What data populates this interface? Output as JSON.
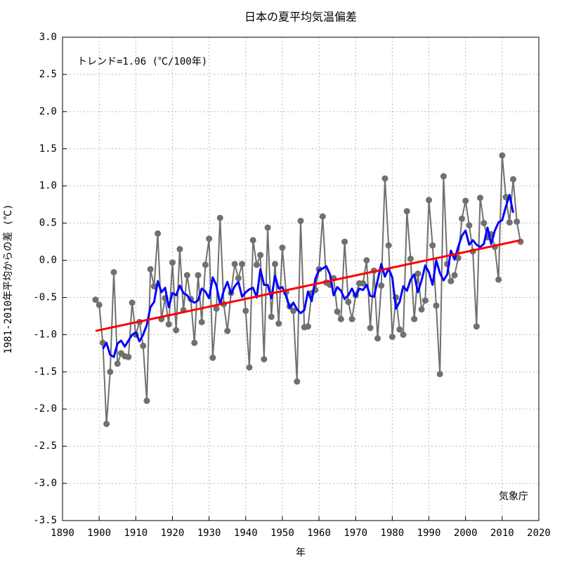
{
  "chart_data": {
    "type": "line",
    "title": "日本の夏平均気温偏差",
    "xlabel": "年",
    "ylabel": "1981-2010年平均からの差 (℃)",
    "annotations": [
      "トレンド=1.06 (℃/100年)",
      "気象庁"
    ],
    "xlim": [
      1890,
      2020
    ],
    "xticks": [
      1890,
      1900,
      1910,
      1920,
      1930,
      1940,
      1950,
      1960,
      1970,
      1980,
      1990,
      2000,
      2010,
      2020
    ],
    "ylim": [
      -3.5,
      3.0
    ],
    "yticks": [
      {
        "value": -3.5,
        "label": "-3.5"
      },
      {
        "value": -3,
        "label": "-3.0"
      },
      {
        "value": -2.5,
        "label": "-2.5"
      },
      {
        "value": -2,
        "label": "-2.0"
      },
      {
        "value": -1.5,
        "label": "-1.5"
      },
      {
        "value": -1,
        "label": "-1.0"
      },
      {
        "value": -0.5,
        "label": "-0.5"
      },
      {
        "value": 0,
        "label": "0.0"
      },
      {
        "value": 0.5,
        "label": "0.5"
      },
      {
        "value": 1,
        "label": "1.0"
      },
      {
        "value": 1.5,
        "label": "1.5"
      },
      {
        "value": 2,
        "label": "2.0"
      },
      {
        "value": 2.5,
        "label": "2.5"
      },
      {
        "value": 3,
        "label": "3.0"
      }
    ],
    "grid": true,
    "x": [
      1899,
      1900,
      1901,
      1902,
      1903,
      1904,
      1905,
      1906,
      1907,
      1908,
      1909,
      1910,
      1911,
      1912,
      1913,
      1914,
      1915,
      1916,
      1917,
      1918,
      1919,
      1920,
      1921,
      1922,
      1923,
      1924,
      1925,
      1926,
      1927,
      1928,
      1929,
      1930,
      1931,
      1932,
      1933,
      1934,
      1935,
      1936,
      1937,
      1938,
      1939,
      1940,
      1941,
      1942,
      1943,
      1944,
      1945,
      1946,
      1947,
      1948,
      1949,
      1950,
      1951,
      1952,
      1953,
      1954,
      1955,
      1956,
      1957,
      1958,
      1959,
      1960,
      1961,
      1962,
      1963,
      1964,
      1965,
      1966,
      1967,
      1968,
      1969,
      1970,
      1971,
      1972,
      1973,
      1974,
      1975,
      1976,
      1977,
      1978,
      1979,
      1980,
      1981,
      1982,
      1983,
      1984,
      1985,
      1986,
      1987,
      1988,
      1989,
      1990,
      1991,
      1992,
      1993,
      1994,
      1995,
      1996,
      1997,
      1998,
      1999,
      2000,
      2001,
      2002,
      2003,
      2004,
      2005,
      2006,
      2007,
      2008,
      2009,
      2010,
      2011,
      2012,
      2013,
      2014,
      2015
    ],
    "series": [
      {
        "color": "#707070",
        "markers": true,
        "values": [
          -0.53,
          -0.6,
          -1.11,
          -2.2,
          -1.5,
          -0.16,
          -1.39,
          -1.25,
          -1.29,
          -1.3,
          -0.57,
          -1.0,
          -0.83,
          -1.15,
          -1.89,
          -0.12,
          -0.35,
          0.36,
          -0.79,
          -0.51,
          -0.86,
          -0.03,
          -0.94,
          0.15,
          -0.67,
          -0.2,
          -0.52,
          -1.11,
          -0.2,
          -0.83,
          -0.06,
          0.29,
          -1.31,
          -0.65,
          0.57,
          -0.59,
          -0.95,
          -0.44,
          -0.05,
          -0.24,
          -0.05,
          -0.68,
          -1.44,
          0.27,
          -0.06,
          0.07,
          -1.33,
          0.44,
          -0.76,
          -0.05,
          -0.85,
          0.17,
          -0.43,
          -0.62,
          -0.68,
          -1.63,
          0.53,
          -0.9,
          -0.89,
          -0.44,
          -0.4,
          -0.12,
          0.59,
          -0.3,
          -0.33,
          -0.24,
          -0.69,
          -0.79,
          0.25,
          -0.56,
          -0.79,
          -0.47,
          -0.31,
          -0.31,
          0.0,
          -0.91,
          -0.14,
          -1.05,
          -0.34,
          1.1,
          0.2,
          -1.03,
          -0.5,
          -0.93,
          -1.0,
          0.66,
          0.02,
          -0.79,
          -0.18,
          -0.66,
          -0.54,
          0.81,
          0.2,
          -0.61,
          -1.53,
          1.13,
          -0.05,
          -0.28,
          -0.2,
          0.03,
          0.56,
          0.8,
          0.47,
          0.12,
          -0.89,
          0.84,
          0.5,
          0.31,
          0.35,
          0.18,
          -0.26,
          1.41,
          0.85,
          0.51,
          1.09,
          0.52,
          0.25
        ]
      },
      {
        "color": "#0000ff",
        "markers": false,
        "values": [
          null,
          null,
          -1.19,
          -1.11,
          -1.27,
          -1.3,
          -1.12,
          -1.08,
          -1.16,
          -1.08,
          -1.0,
          -0.97,
          -1.09,
          -1.0,
          -0.87,
          -0.63,
          -0.56,
          -0.28,
          -0.43,
          -0.37,
          -0.63,
          -0.44,
          -0.47,
          -0.34,
          -0.44,
          -0.47,
          -0.54,
          -0.57,
          -0.54,
          -0.38,
          -0.42,
          -0.51,
          -0.23,
          -0.34,
          -0.59,
          -0.41,
          -0.29,
          -0.45,
          -0.35,
          -0.29,
          -0.49,
          -0.43,
          -0.39,
          -0.37,
          -0.5,
          -0.12,
          -0.33,
          -0.33,
          -0.51,
          -0.21,
          -0.38,
          -0.36,
          -0.48,
          -0.64,
          -0.57,
          -0.66,
          -0.71,
          -0.67,
          -0.42,
          -0.55,
          -0.25,
          -0.13,
          -0.11,
          -0.08,
          -0.19,
          -0.47,
          -0.36,
          -0.41,
          -0.52,
          -0.47,
          -0.38,
          -0.49,
          -0.38,
          -0.4,
          -0.33,
          -0.48,
          -0.49,
          -0.27,
          -0.05,
          -0.22,
          -0.11,
          -0.23,
          -0.65,
          -0.56,
          -0.35,
          -0.41,
          -0.26,
          -0.19,
          -0.43,
          -0.27,
          -0.07,
          -0.16,
          -0.33,
          0.0,
          -0.17,
          -0.27,
          -0.19,
          0.13,
          0.01,
          0.18,
          0.33,
          0.4,
          0.21,
          0.27,
          0.21,
          0.18,
          0.22,
          0.44,
          0.22,
          0.4,
          0.51,
          0.54,
          0.72,
          0.88,
          0.64,
          null,
          null
        ]
      }
    ],
    "trend": {
      "color": "#ff0000",
      "x": [
        1899,
        2015
      ],
      "values": [
        -0.95,
        0.27
      ]
    }
  }
}
